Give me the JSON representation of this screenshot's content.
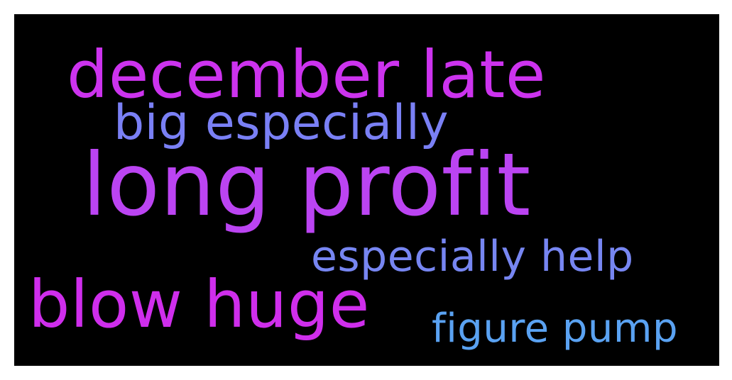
{
  "wordcloud": {
    "background_color": "#000000",
    "words": [
      {
        "text": "december late",
        "color": "#cc33ee"
      },
      {
        "text": "big especially",
        "color": "#7a80f5"
      },
      {
        "text": "long profit",
        "color": "#bb44f2"
      },
      {
        "text": "especially help",
        "color": "#7786f2"
      },
      {
        "text": "blow huge",
        "color": "#cf2eec"
      },
      {
        "text": "figure pump",
        "color": "#5aa2f2"
      }
    ]
  }
}
